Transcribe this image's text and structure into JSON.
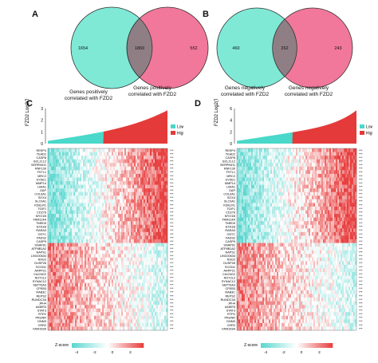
{
  "panels": {
    "A": {
      "letter": "A",
      "venn": {
        "left_only": "1654",
        "overlap": "1869",
        "right_only": "552"
      },
      "left_label": [
        "Genes positively",
        "correlated with FZD2"
      ],
      "right_label": [
        "Genes positively",
        "correlated with FZD2"
      ]
    },
    "B": {
      "letter": "B",
      "venn": {
        "left_only": "460",
        "overlap": "262",
        "right_only": "243"
      },
      "left_label": [
        "Genes negatively",
        "correlated with FZD2"
      ],
      "right_label": [
        "Genes negatively",
        "correlated with FZD2"
      ]
    },
    "C": {
      "letter": "C",
      "ylabel": "FZD2 Log2(TPM+1)",
      "yticks": [
        "0",
        "1",
        "2",
        "3"
      ],
      "legend": [
        "Low",
        "High"
      ],
      "genes": [
        "REEP4",
        "TEAD2",
        "CASP8",
        "BCL2L12",
        "SERPINH1",
        "RNF130",
        "FSTL1",
        "MRC2",
        "SYDE1",
        "MMP14",
        "LIMA1",
        "GAP",
        "COL6A1",
        "SOX4",
        "SLC9A1",
        "KDELR1",
        "TGIF1",
        "CD276",
        "MYO1B",
        "FAM114A",
        "TMED9",
        "EXA1B",
        "RARA3",
        "OSTC",
        "FADS2",
        "CASP9",
        "SNAP91",
        "ATP8B1A2",
        "NAPS1",
        "LINC00634",
        "NSG2",
        "DUSP26",
        "SCGN1",
        "ARPP21",
        "CACNG2",
        "NOT2L2",
        "SYNAC12",
        "SEPT6A3",
        "CPEB3",
        "RAB3C",
        "REPS2",
        "RUNDC3A",
        "JPH4",
        "AMER3",
        "STAT3",
        "RTFK",
        "PRUNR",
        "DNM3",
        "CRR2",
        "FAM153A"
      ],
      "zscore_label": "Z-score",
      "zscore_ticks": [
        "-4",
        "-2",
        "0",
        "2"
      ]
    },
    "D": {
      "letter": "D",
      "ylabel": "FZD2 Log2(TPM+1)",
      "yticks": [
        "0",
        "2",
        "4",
        "6"
      ],
      "legend": [
        "Low",
        "High"
      ],
      "genes": [
        "REEP4",
        "TEAD2",
        "CASP8",
        "BCL2L12",
        "SERPINH1",
        "RNF130",
        "FSTL1",
        "MRC2",
        "SYDE1",
        "MMP14",
        "LIMA1",
        "GAP",
        "COL6A1",
        "SOX4",
        "SLC9A1",
        "KDELR1",
        "TGIF1",
        "CD276",
        "MYO1B",
        "FAM114A",
        "TMED9",
        "EXA1B",
        "RARA3",
        "OSTC",
        "FADS2",
        "CASP9",
        "SNAP91",
        "ATP8B1A2",
        "NAPS1",
        "LINC00634",
        "NSG2",
        "DUSP26",
        "SCGN1",
        "ARPP21",
        "CACNG2",
        "NOT2L2",
        "SYNAC12",
        "SEPT6A3",
        "CPEB3",
        "RAB3C",
        "REPS2",
        "RUNDC3A",
        "JPH4",
        "AMER3",
        "STAT3",
        "RTFK",
        "PRUNR",
        "DNM3",
        "CRR2",
        "FAM153A"
      ],
      "zscore_label": "Z-score",
      "zscore_ticks": [
        "-4",
        "-2",
        "0",
        "2"
      ]
    }
  },
  "colors": {
    "venn_left": "#7fe9d6",
    "venn_right": "#f1789a",
    "venn_overlap": "#8f7f84",
    "low": "#49d8c9",
    "high": "#e53a3a",
    "heat_neg": "#5cd7d0",
    "heat_pos": "#e84040"
  }
}
